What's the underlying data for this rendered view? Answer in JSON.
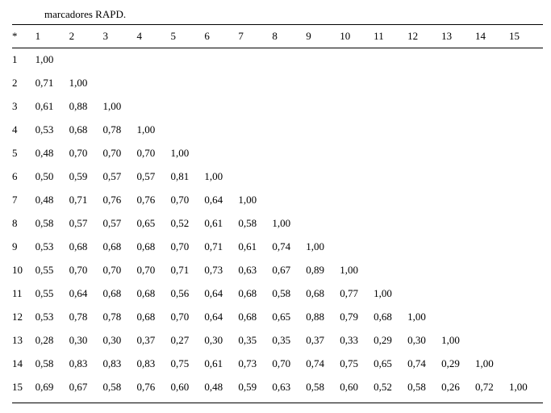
{
  "caption_fragment": "marcadores RAPD.",
  "headers": [
    "*",
    "1",
    "2",
    "3",
    "4",
    "5",
    "6",
    "7",
    "8",
    "9",
    "10",
    "11",
    "12",
    "13",
    "14",
    "15"
  ],
  "rows": [
    [
      "1",
      "1,00",
      "",
      "",
      "",
      "",
      "",
      "",
      "",
      "",
      "",
      "",
      "",
      "",
      "",
      ""
    ],
    [
      "2",
      "0,71",
      "1,00",
      "",
      "",
      "",
      "",
      "",
      "",
      "",
      "",
      "",
      "",
      "",
      "",
      ""
    ],
    [
      "3",
      "0,61",
      "0,88",
      "1,00",
      "",
      "",
      "",
      "",
      "",
      "",
      "",
      "",
      "",
      "",
      "",
      ""
    ],
    [
      "4",
      "0,53",
      "0,68",
      "0,78",
      "1,00",
      "",
      "",
      "",
      "",
      "",
      "",
      "",
      "",
      "",
      "",
      ""
    ],
    [
      "5",
      "0,48",
      "0,70",
      "0,70",
      "0,70",
      "1,00",
      "",
      "",
      "",
      "",
      "",
      "",
      "",
      "",
      "",
      ""
    ],
    [
      "6",
      "0,50",
      "0,59",
      "0,57",
      "0,57",
      "0,81",
      "1,00",
      "",
      "",
      "",
      "",
      "",
      "",
      "",
      "",
      ""
    ],
    [
      "7",
      "0,48",
      "0,71",
      "0,76",
      "0,76",
      "0,70",
      "0,64",
      "1,00",
      "",
      "",
      "",
      "",
      "",
      "",
      "",
      ""
    ],
    [
      "8",
      "0,58",
      "0,57",
      "0,57",
      "0,65",
      "0,52",
      "0,61",
      "0,58",
      "1,00",
      "",
      "",
      "",
      "",
      "",
      "",
      ""
    ],
    [
      "9",
      "0,53",
      "0,68",
      "0,68",
      "0,68",
      "0,70",
      "0,71",
      "0,61",
      "0,74",
      "1,00",
      "",
      "",
      "",
      "",
      "",
      ""
    ],
    [
      "10",
      "0,55",
      "0,70",
      "0,70",
      "0,70",
      "0,71",
      "0,73",
      "0,63",
      "0,67",
      "0,89",
      "1,00",
      "",
      "",
      "",
      "",
      ""
    ],
    [
      "11",
      "0,55",
      "0,64",
      "0,68",
      "0,68",
      "0,56",
      "0,64",
      "0,68",
      "0,58",
      "0,68",
      "0,77",
      "1,00",
      "",
      "",
      "",
      ""
    ],
    [
      "12",
      "0,53",
      "0,78",
      "0,78",
      "0,68",
      "0,70",
      "0,64",
      "0,68",
      "0,65",
      "0,88",
      "0,79",
      "0,68",
      "1,00",
      "",
      "",
      ""
    ],
    [
      "13",
      "0,28",
      "0,30",
      "0,30",
      "0,37",
      "0,27",
      "0,30",
      "0,35",
      "0,35",
      "0,37",
      "0,33",
      "0,29",
      "0,30",
      "1,00",
      "",
      ""
    ],
    [
      "14",
      "0,58",
      "0,83",
      "0,83",
      "0,83",
      "0,75",
      "0,61",
      "0,73",
      "0,70",
      "0,74",
      "0,75",
      "0,65",
      "0,74",
      "0,29",
      "1,00",
      ""
    ],
    [
      "15",
      "0,69",
      "0,67",
      "0,58",
      "0,76",
      "0,60",
      "0,48",
      "0,59",
      "0,63",
      "0,58",
      "0,60",
      "0,52",
      "0,58",
      "0,26",
      "0,72",
      "1,00"
    ]
  ],
  "footnote": ""
}
